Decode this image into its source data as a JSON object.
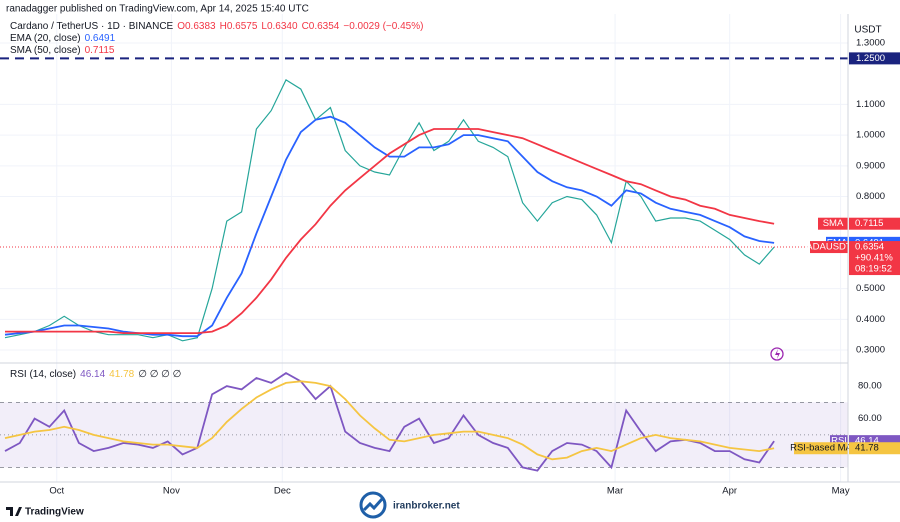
{
  "header": {
    "publisher": "ranadagger published on TradingView.com, Apr 14, 2025 15:40 UTC"
  },
  "footer": {
    "logo": "TradingView",
    "watermark": "iranbroker.net"
  },
  "chart_data": [
    {
      "type": "line",
      "title": "Cardano / TetherUS · 1D · BINANCE",
      "ohlc": [
        "O0.6383",
        "H0.6575",
        "L0.6340",
        "C0.6354"
      ],
      "change": "−0.0029 (−0.45%)",
      "axis_unit": "USDT",
      "xlim": [
        0,
        57
      ],
      "ylim": [
        0.261,
        1.375
      ],
      "yticks": [
        {
          "value": 0.3,
          "label": "0.3000"
        },
        {
          "value": 0.4,
          "label": "0.4000"
        },
        {
          "value": 0.5,
          "label": "0.5000"
        },
        {
          "value": 0.8,
          "label": "0.8000"
        },
        {
          "value": 0.9,
          "label": "0.9000"
        },
        {
          "value": 1.0,
          "label": "1.0000"
        },
        {
          "value": 1.1,
          "label": "1.1000"
        },
        {
          "value": 1.3,
          "label": "1.3000"
        }
      ],
      "grid": true,
      "levels": [
        {
          "value": 1.25,
          "label": "1.2500",
          "color": "#1a237e"
        }
      ],
      "series": [
        {
          "name": "ADAUSDT",
          "color": "#26a69a",
          "tag_color": "#f23645",
          "values": [
            0.34,
            0.35,
            0.36,
            0.38,
            0.41,
            0.38,
            0.36,
            0.35,
            0.35,
            0.35,
            0.34,
            0.35,
            0.33,
            0.34,
            0.5,
            0.72,
            0.75,
            1.02,
            1.08,
            1.18,
            1.15,
            1.05,
            1.09,
            0.95,
            0.9,
            0.88,
            0.87,
            0.96,
            1.04,
            0.95,
            0.98,
            1.05,
            0.98,
            0.96,
            0.93,
            0.78,
            0.72,
            0.78,
            0.8,
            0.79,
            0.74,
            0.65,
            0.85,
            0.8,
            0.72,
            0.73,
            0.73,
            0.72,
            0.69,
            0.66,
            0.61,
            0.58,
            0.6354
          ],
          "change_pct": "+90.41%",
          "countdown": "08:19:52"
        },
        {
          "name": "EMA (20, close)",
          "tag": "EMA",
          "color": "#2962ff",
          "values": [
            0.35,
            0.355,
            0.36,
            0.37,
            0.38,
            0.38,
            0.375,
            0.37,
            0.36,
            0.355,
            0.35,
            0.35,
            0.345,
            0.345,
            0.38,
            0.47,
            0.55,
            0.68,
            0.8,
            0.92,
            1.01,
            1.05,
            1.06,
            1.04,
            1.0,
            0.96,
            0.93,
            0.93,
            0.96,
            0.96,
            0.97,
            1.0,
            1.0,
            0.99,
            0.98,
            0.93,
            0.88,
            0.85,
            0.83,
            0.82,
            0.8,
            0.77,
            0.82,
            0.81,
            0.78,
            0.76,
            0.75,
            0.74,
            0.72,
            0.7,
            0.67,
            0.655,
            0.6491
          ]
        },
        {
          "name": "SMA (50, close)",
          "tag": "SMA",
          "color": "#f23645",
          "values": [
            0.36,
            0.36,
            0.36,
            0.36,
            0.36,
            0.36,
            0.36,
            0.36,
            0.355,
            0.355,
            0.355,
            0.355,
            0.355,
            0.355,
            0.36,
            0.38,
            0.42,
            0.47,
            0.53,
            0.6,
            0.66,
            0.71,
            0.77,
            0.82,
            0.86,
            0.9,
            0.94,
            0.97,
            1.0,
            1.02,
            1.02,
            1.02,
            1.02,
            1.01,
            1.0,
            0.99,
            0.97,
            0.95,
            0.93,
            0.91,
            0.89,
            0.87,
            0.85,
            0.84,
            0.82,
            0.8,
            0.79,
            0.77,
            0.76,
            0.74,
            0.73,
            0.72,
            0.7115
          ]
        }
      ]
    },
    {
      "type": "line",
      "title": "RSI (14, close)",
      "extra": "∅ ∅ ∅ ∅",
      "xlim": [
        0,
        57
      ],
      "ylim": [
        21,
        93
      ],
      "yticks": [
        {
          "value": 80,
          "label": "80.00"
        },
        {
          "value": 60,
          "label": "60.00"
        }
      ],
      "bands": [
        70,
        50,
        30
      ],
      "xticks": [
        {
          "value": 3.5,
          "label": "Oct"
        },
        {
          "value": 11.25,
          "label": "Nov"
        },
        {
          "value": 18.75,
          "label": "Dec"
        },
        {
          "value": 41.25,
          "label": "Mar"
        },
        {
          "value": 49,
          "label": "Apr"
        },
        {
          "value": 56.5,
          "label": "May"
        }
      ],
      "series": [
        {
          "name": "RSI",
          "color": "#7e57c2",
          "values": [
            40,
            45,
            60,
            55,
            65,
            45,
            40,
            42,
            45,
            44,
            42,
            46,
            38,
            42,
            75,
            80,
            78,
            85,
            82,
            88,
            83,
            72,
            80,
            52,
            45,
            42,
            40,
            55,
            60,
            45,
            48,
            62,
            50,
            45,
            42,
            30,
            28,
            40,
            45,
            44,
            40,
            30,
            65,
            52,
            40,
            46,
            47,
            45,
            40,
            40,
            35,
            33,
            46.14
          ]
        },
        {
          "name": "RSI-based MA",
          "color": "#f5c542",
          "values": [
            48,
            50,
            52,
            53,
            55,
            53,
            50,
            48,
            46,
            45,
            44,
            44,
            43,
            42,
            48,
            58,
            66,
            73,
            78,
            82,
            83,
            82,
            80,
            72,
            62,
            54,
            47,
            46,
            48,
            50,
            51,
            52,
            52,
            50,
            48,
            44,
            38,
            35,
            36,
            40,
            42,
            40,
            44,
            48,
            50,
            48,
            47,
            46,
            44,
            42,
            41,
            40,
            41.78
          ]
        }
      ]
    }
  ]
}
